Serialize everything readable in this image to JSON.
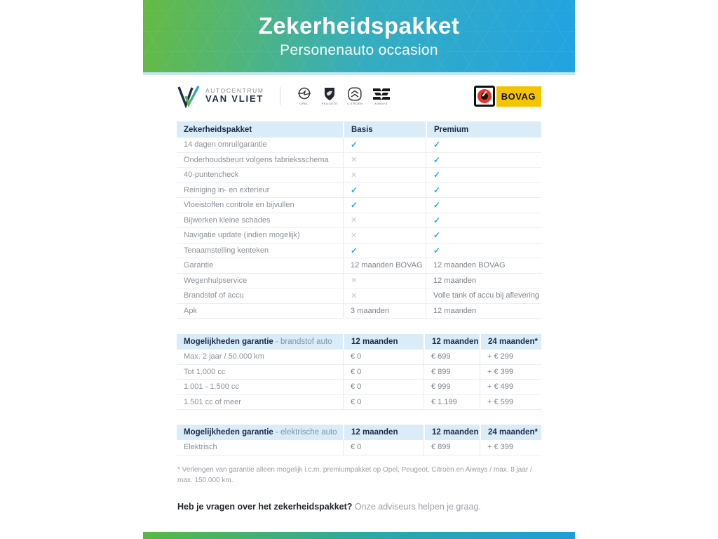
{
  "banner": {
    "title": "Zekerheidspakket",
    "subtitle": "Personenauto occasion"
  },
  "brand_bar": {
    "dealer_name_top": "AUTOCENTRUM",
    "dealer_name_bottom": "VAN VLIET",
    "brand_logos": [
      "OPEL",
      "PEUGEOT",
      "CITROËN",
      "AIWAYS"
    ],
    "bovag_label": "BOVAG"
  },
  "colors": {
    "accent_green": "#5eba43",
    "accent_blue": "#1f9fdb",
    "check_blue": "#2aa9da",
    "cross_gray": "#c6c9cc",
    "header_bg": "#d9ecf7",
    "navy_text": "#1f2b49"
  },
  "comparison_table": {
    "headers": [
      "Zekerheidspakket",
      "Basis",
      "Premium"
    ],
    "rows": [
      [
        "14 dagen omruilgarantie",
        "CHECK",
        "CHECK"
      ],
      [
        "Onderhoudsbeurt volgens fabrieksschema",
        "CROSS",
        "CHECK"
      ],
      [
        "40-puntencheck",
        "CROSS",
        "CHECK"
      ],
      [
        "Reiniging in- en exterieur",
        "CHECK",
        "CHECK"
      ],
      [
        "Vloeistoffen controle en bijvullen",
        "CHECK",
        "CHECK"
      ],
      [
        "Bijwerken kleine schades",
        "CROSS",
        "CHECK"
      ],
      [
        "Navigatie update (indien mogelijk)",
        "CROSS",
        "CHECK"
      ],
      [
        "Tenaamstelling kenteken",
        "CHECK",
        "CHECK"
      ],
      [
        "Garantie",
        "12 maanden BOVAG",
        "12 maanden BOVAG"
      ],
      [
        "Wegenhulpservice",
        "CROSS",
        "12 maanden"
      ],
      [
        "Brandstof of accu",
        "CROSS",
        "Volle tank of accu bij aflevering"
      ],
      [
        "Apk",
        "3 maanden",
        "12 maanden"
      ]
    ]
  },
  "fuel_table": {
    "header_title": "Mogelijkheden garantie",
    "header_suffix": " - brandstof auto",
    "headers": [
      "12 maanden",
      "12 maanden",
      "24 maanden*"
    ],
    "rows": [
      [
        "Max. 2 jaar / 50.000 km",
        "€ 0",
        "€ 699",
        "+ € 299"
      ],
      [
        "Tot 1.000 cc",
        "€ 0",
        "€ 899",
        "+ € 399"
      ],
      [
        "1.001 - 1.500 cc",
        "€ 0",
        "€ 999",
        "+ € 499"
      ],
      [
        "1.501 cc of meer",
        "€ 0",
        "€ 1.199",
        "+ € 599"
      ]
    ]
  },
  "electric_table": {
    "header_title": "Mogelijkheden garantie",
    "header_suffix": " - elektrische auto",
    "headers": [
      "12 maanden",
      "12 maanden",
      "24 maanden*"
    ],
    "rows": [
      [
        "Elektrisch",
        "€ 0",
        "€ 899",
        "+ € 399"
      ]
    ]
  },
  "footnote": "* Verlengen van garantie alleen mogelijk i.c.m. premiumpakket op Opel, Peugeot, Citroën en Aiways / max. 8 jaar / max. 150.000 km.",
  "closing": {
    "question": "Heb je vragen over het zekerheidspakket?",
    "answer": " Onze adviseurs helpen je graag."
  },
  "icons": {
    "check": "✓",
    "cross": "✕"
  }
}
